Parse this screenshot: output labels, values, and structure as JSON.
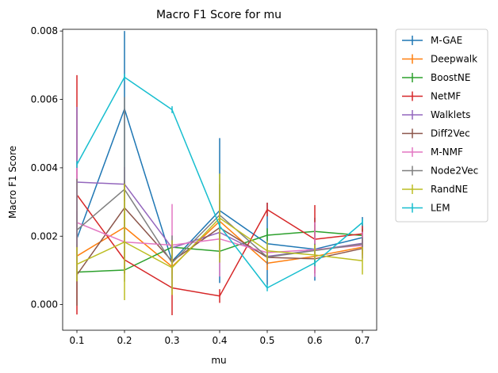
{
  "chart_data": {
    "type": "line",
    "title": "Macro F1 Score for mu",
    "xlabel": "mu",
    "ylabel": "Macro F1 Score",
    "x": [
      0.1,
      0.2,
      0.3,
      0.4,
      0.5,
      0.6,
      0.7
    ],
    "x_ticks": [
      "0.1",
      "0.2",
      "0.3",
      "0.4",
      "0.5",
      "0.6",
      "0.7"
    ],
    "y_ticks": [
      "0.000",
      "0.002",
      "0.004",
      "0.006",
      "0.008"
    ],
    "y_tick_values": [
      0,
      0.002,
      0.004,
      0.006,
      0.008
    ],
    "xlim": [
      0.07,
      0.73
    ],
    "ylim": [
      -0.00075,
      0.00805
    ],
    "grid": false,
    "legend_position": "outside-right",
    "series": [
      {
        "name": "M-GAE",
        "color": "#1f77b4",
        "values": [
          0.00193,
          0.00572,
          0.00127,
          0.00275,
          0.00178,
          0.00162,
          0.00196
        ],
        "errors": [
          0.0008,
          0.00228,
          0.0005,
          0.00212,
          0.0012,
          0.00092,
          0.0006
        ]
      },
      {
        "name": "Deepwalk",
        "color": "#ff7f0e",
        "values": [
          0.00142,
          0.00226,
          0.00111,
          0.00244,
          0.00121,
          0.00141,
          0.00168
        ],
        "errors": [
          0.0003,
          0.0004,
          0.0002,
          0.0003,
          0.0002,
          0.0002,
          0.0002
        ]
      },
      {
        "name": "BoostNE",
        "color": "#2ca02c",
        "values": [
          0.00095,
          0.00101,
          0.00168,
          0.00156,
          0.00203,
          0.00214,
          0.00202
        ],
        "errors": [
          0.0001,
          0.0001,
          0.0002,
          0.0002,
          0.0002,
          0.0002,
          0.0002
        ]
      },
      {
        "name": "NetMF",
        "color": "#d62728",
        "values": [
          0.00321,
          0.00131,
          0.00049,
          0.00025,
          0.00278,
          0.00191,
          0.00207
        ],
        "errors": [
          0.0035,
          0.0004,
          0.0008,
          0.0002,
          0.0002,
          0.001,
          0.0003
        ]
      },
      {
        "name": "Walklets",
        "color": "#9467bd",
        "values": [
          0.00358,
          0.00352,
          0.00166,
          0.00211,
          0.00141,
          0.00159,
          0.00179
        ],
        "errors": [
          0.0022,
          0.0005,
          0.0002,
          0.0003,
          0.0002,
          0.0002,
          0.0002
        ]
      },
      {
        "name": "Diff2Vec",
        "color": "#8c564b",
        "values": [
          0.00087,
          0.00283,
          0.00127,
          0.00225,
          0.00138,
          0.00134,
          0.00164
        ],
        "errors": [
          0.0009,
          0.0008,
          0.0002,
          0.0003,
          0.0002,
          0.0002,
          0.0002
        ]
      },
      {
        "name": "M-NMF",
        "color": "#e377c2",
        "values": [
          0.0024,
          0.00183,
          0.00174,
          0.00192,
          0.00152,
          0.00161,
          0.00173
        ],
        "errors": [
          0.0016,
          0.0005,
          0.0012,
          0.0011,
          0.0002,
          0.0008,
          0.0004
        ]
      },
      {
        "name": "Node2Vec",
        "color": "#7f7f7f",
        "values": [
          0.00218,
          0.00337,
          0.00122,
          0.00262,
          0.00139,
          0.00158,
          0.00177
        ],
        "errors": [
          0.0015,
          0.0027,
          0.0008,
          0.0009,
          0.0002,
          0.0002,
          0.0002
        ]
      },
      {
        "name": "RandNE",
        "color": "#bcbd22",
        "values": [
          0.00118,
          0.00183,
          0.00108,
          0.00253,
          0.00157,
          0.00145,
          0.00128
        ],
        "errors": [
          0.0005,
          0.0017,
          0.0008,
          0.0013,
          0.0003,
          0.0003,
          0.0004
        ]
      },
      {
        "name": "LEM",
        "color": "#17becf",
        "values": [
          0.0041,
          0.00665,
          0.0057,
          0.0023,
          0.00049,
          0.00122,
          0.0024
        ],
        "errors": [
          0.0001,
          0.0001,
          0.0001,
          0.0001,
          0.0001,
          0.0001,
          0.0001
        ]
      }
    ]
  }
}
